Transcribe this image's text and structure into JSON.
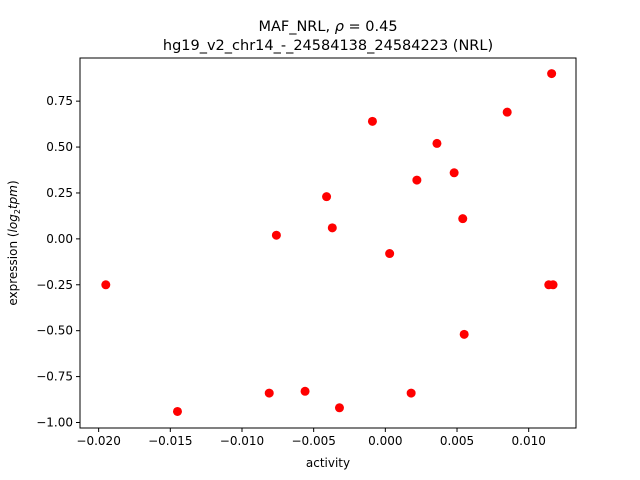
{
  "chart_data": {
    "type": "scatter",
    "title_line1_prefix": "MAF_NRL, ",
    "title_line1_rho": "ρ",
    "title_line1_value": " = 0.45",
    "title_line2": "hg19_v2_chr14_-_24584138_24584223 (NRL)",
    "xlabel": "activity",
    "ylabel_prefix": "expression (",
    "ylabel_log": "log",
    "ylabel_sub": "2",
    "ylabel_tpm": "tpm",
    "ylabel_suffix": ")",
    "xlim": [
      -0.0213,
      0.0133
    ],
    "ylim": [
      -1.03,
      0.985
    ],
    "xticks": [
      -0.02,
      -0.015,
      -0.01,
      -0.005,
      0.0,
      0.005,
      0.01
    ],
    "xtick_labels": [
      "−0.020",
      "−0.015",
      "−0.010",
      "−0.005",
      "0.000",
      "0.005",
      "0.010"
    ],
    "yticks": [
      -1.0,
      -0.75,
      -0.5,
      -0.25,
      0.0,
      0.25,
      0.5,
      0.75
    ],
    "ytick_labels": [
      "−1.00",
      "−0.75",
      "−0.50",
      "−0.25",
      "0.00",
      "0.25",
      "0.50",
      "0.75"
    ],
    "grid": false,
    "marker_color": "#ff0000",
    "points": [
      {
        "x": -0.0195,
        "y": -0.25
      },
      {
        "x": -0.0145,
        "y": -0.94
      },
      {
        "x": -0.0081,
        "y": -0.84
      },
      {
        "x": -0.0076,
        "y": 0.02
      },
      {
        "x": -0.0056,
        "y": -0.83
      },
      {
        "x": -0.0041,
        "y": 0.23
      },
      {
        "x": -0.0037,
        "y": 0.06
      },
      {
        "x": -0.0032,
        "y": -0.92
      },
      {
        "x": -0.0009,
        "y": 0.64
      },
      {
        "x": 0.0003,
        "y": -0.08
      },
      {
        "x": 0.0018,
        "y": -0.84
      },
      {
        "x": 0.0022,
        "y": 0.32
      },
      {
        "x": 0.0036,
        "y": 0.52
      },
      {
        "x": 0.0048,
        "y": 0.36
      },
      {
        "x": 0.0054,
        "y": 0.11
      },
      {
        "x": 0.0055,
        "y": -0.52
      },
      {
        "x": 0.0085,
        "y": 0.69
      },
      {
        "x": 0.0114,
        "y": -0.25
      },
      {
        "x": 0.0117,
        "y": -0.25
      },
      {
        "x": 0.0116,
        "y": 0.9
      }
    ]
  }
}
